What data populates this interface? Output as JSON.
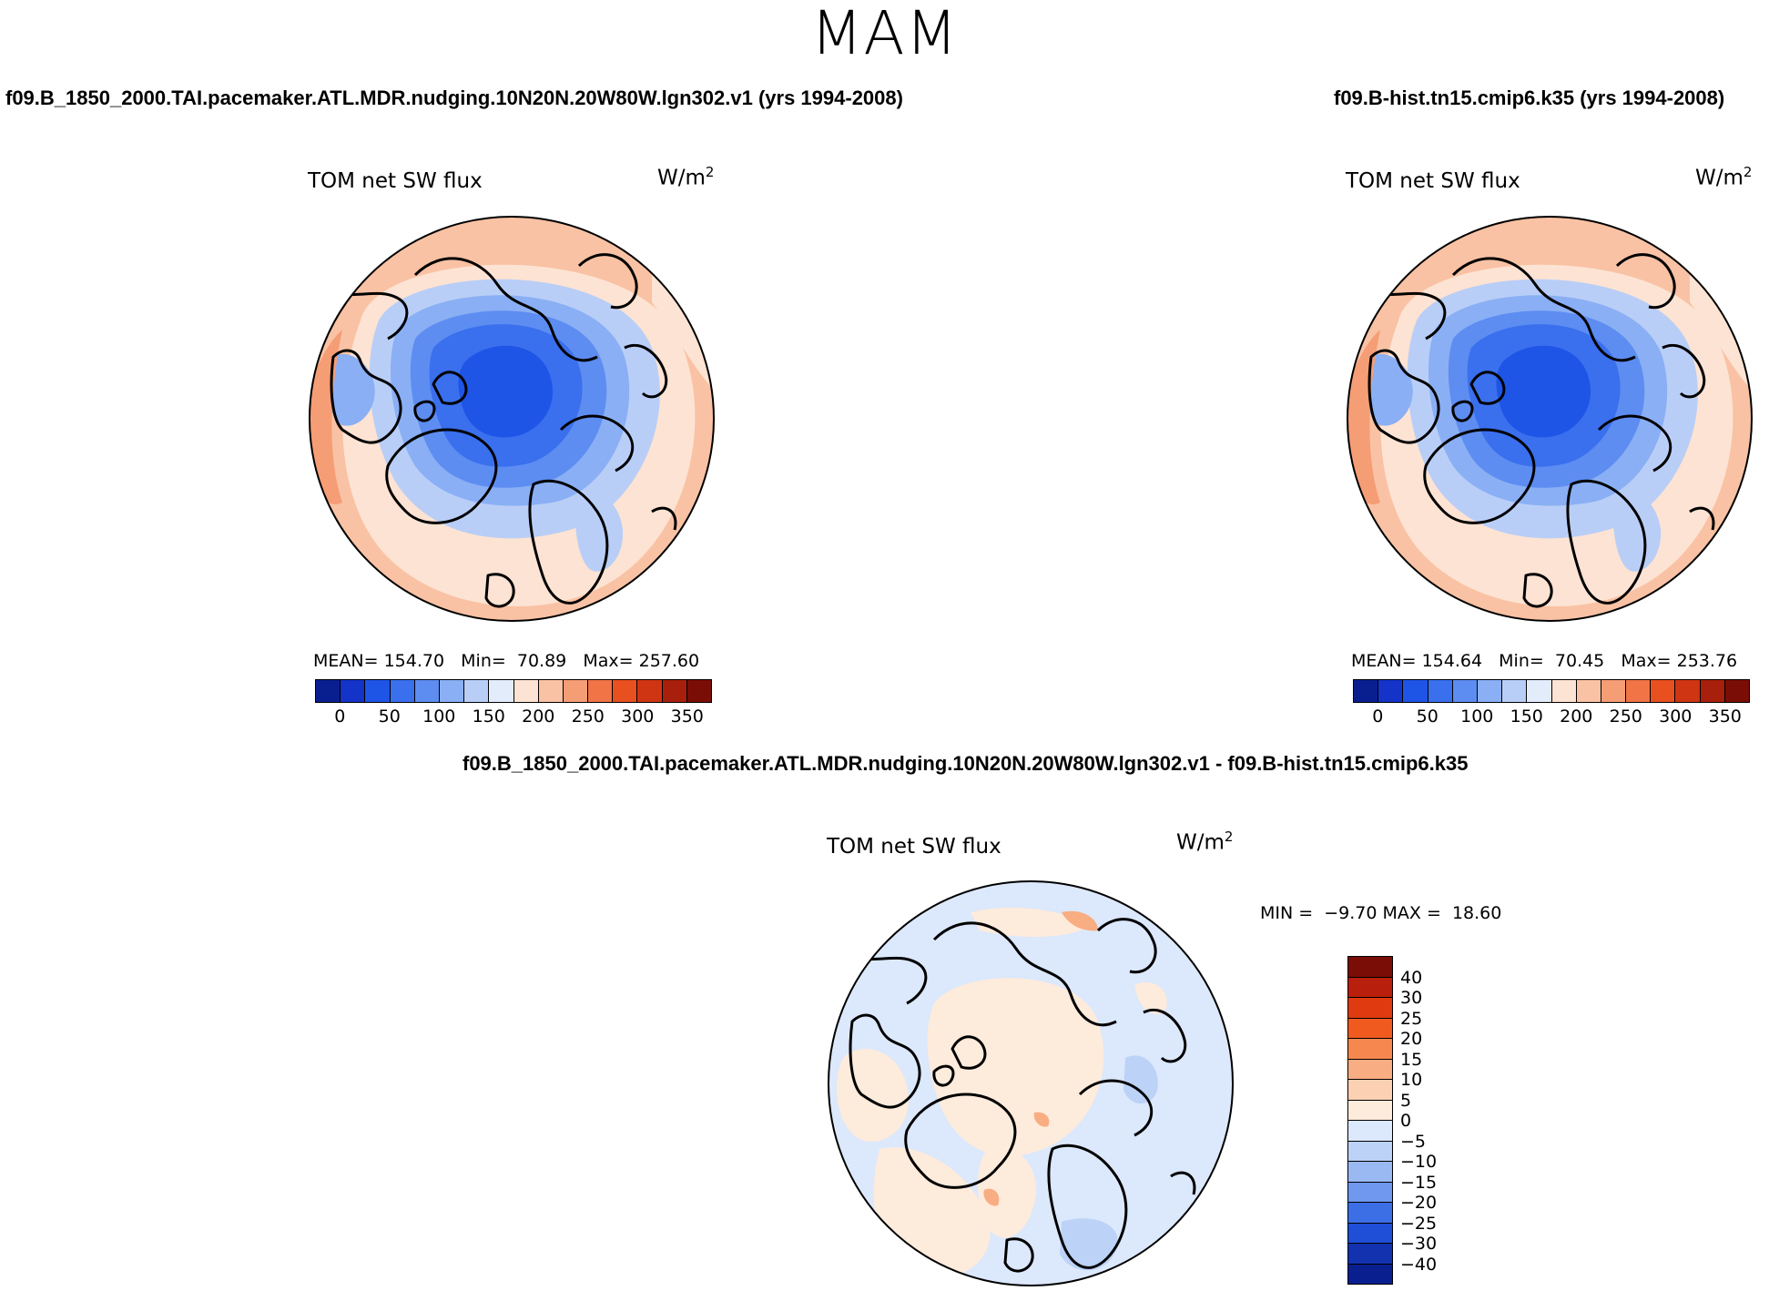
{
  "figure": {
    "season": "MAM"
  },
  "panels": [
    {
      "case_title": "f09.B_1850_2000.TAI.pacemaker.ATL.MDR.nudging.10N20N.20W80W.lgn302.v1 (yrs 1994-2008)",
      "variable": "TOM net SW flux",
      "units": "W/m",
      "units_exp": "2",
      "stats": "MEAN= 154.70   Min=  70.89   Max= 257.60",
      "field": "model"
    },
    {
      "case_title": "f09.B-hist.tn15.cmip6.k35 (yrs 1994-2008)",
      "variable": "TOM net SW flux",
      "units": "W/m",
      "units_exp": "2",
      "stats": "MEAN= 154.64   Min=  70.45   Max= 253.76",
      "field": "control"
    }
  ],
  "diff_panel": {
    "case_title": "f09.B_1850_2000.TAI.pacemaker.ATL.MDR.nudging.10N20N.20W80W.lgn302.v1 - f09.B-hist.tn15.cmip6.k35",
    "variable": "TOM net SW flux",
    "units": "W/m",
    "units_exp": "2",
    "stats": "MIN =  −9.70 MAX =  18.60"
  },
  "chart_data": [
    {
      "type": "heatmap",
      "projection": "polar stereographic (north pole)",
      "title": "TOM net SW flux",
      "units": "W/m2",
      "mean": 154.7,
      "min": 70.89,
      "max": 257.6,
      "colorbar": {
        "labels": [
          "0",
          "50",
          "100",
          "150",
          "200",
          "250",
          "300",
          "350"
        ],
        "colors": [
          "#0a1f8f",
          "#1433c8",
          "#1f55e6",
          "#3a6fee",
          "#5d8df1",
          "#8aaff4",
          "#b9cef7",
          "#e2ecfb",
          "#fde3d3",
          "#f9c2a4",
          "#f59d75",
          "#f07446",
          "#e8501f",
          "#cf3513",
          "#a8200c",
          "#7a0d06"
        ]
      }
    },
    {
      "type": "heatmap",
      "projection": "polar stereographic (north pole)",
      "title": "TOM net SW flux",
      "units": "W/m2",
      "mean": 154.64,
      "min": 70.45,
      "max": 253.76,
      "colorbar": {
        "labels": [
          "0",
          "50",
          "100",
          "150",
          "200",
          "250",
          "300",
          "350"
        ],
        "colors": [
          "#0a1f8f",
          "#1433c8",
          "#1f55e6",
          "#3a6fee",
          "#5d8df1",
          "#8aaff4",
          "#b9cef7",
          "#e2ecfb",
          "#fde3d3",
          "#f9c2a4",
          "#f59d75",
          "#f07446",
          "#e8501f",
          "#cf3513",
          "#a8200c",
          "#7a0d06"
        ]
      }
    },
    {
      "type": "heatmap",
      "projection": "polar stereographic (north pole)",
      "title": "TOM net SW flux",
      "units": "W/m2",
      "min": -9.7,
      "max": 18.6,
      "colorbar": {
        "labels": [
          "40",
          "30",
          "25",
          "20",
          "15",
          "10",
          "5",
          "0",
          "−5",
          "−10",
          "−15",
          "−20",
          "−25",
          "−30",
          "−40"
        ],
        "colors": [
          "#7a0d06",
          "#b81f0c",
          "#e03a10",
          "#f05a1f",
          "#f5874f",
          "#f9ad82",
          "#fcd0b3",
          "#fdebdc",
          "#dce8fb",
          "#bcd2f7",
          "#9ab9f3",
          "#6f98ee",
          "#3c6fe6",
          "#1f4fd6",
          "#1232b0",
          "#0a1f8f"
        ]
      }
    }
  ]
}
